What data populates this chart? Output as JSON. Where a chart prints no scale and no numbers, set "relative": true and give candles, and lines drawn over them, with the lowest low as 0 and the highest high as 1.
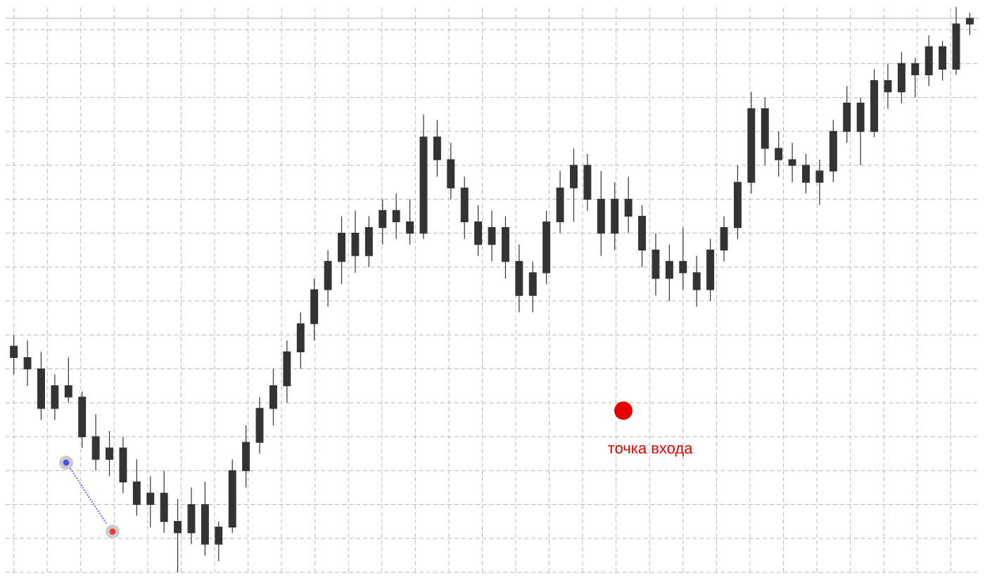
{
  "chart_data": {
    "type": "candlestick",
    "relative": true,
    "grid": true,
    "categories": [
      null,
      null,
      null,
      null,
      null,
      null,
      null,
      null,
      null,
      null,
      null,
      null,
      null,
      null,
      null,
      null,
      null,
      null,
      null,
      null,
      null,
      null,
      null,
      null,
      null,
      null,
      null,
      null,
      null,
      null,
      null,
      null,
      null,
      null,
      null,
      null,
      null,
      null,
      null,
      null,
      null,
      null,
      null,
      null,
      null,
      null,
      null,
      null,
      null,
      null,
      null,
      null,
      null,
      null,
      null,
      null,
      null,
      null,
      null,
      null,
      null,
      null,
      null,
      null,
      null,
      null,
      null,
      null,
      null,
      null,
      null
    ],
    "ohlc": [
      [
        0.4,
        0.42,
        0.35,
        0.38
      ],
      [
        0.38,
        0.41,
        0.33,
        0.36
      ],
      [
        0.36,
        0.39,
        0.27,
        0.29
      ],
      [
        0.29,
        0.35,
        0.27,
        0.33
      ],
      [
        0.33,
        0.38,
        0.3,
        0.31
      ],
      [
        0.31,
        0.32,
        0.22,
        0.24
      ],
      [
        0.24,
        0.28,
        0.18,
        0.2
      ],
      [
        0.2,
        0.25,
        0.17,
        0.22
      ],
      [
        0.22,
        0.24,
        0.14,
        0.16
      ],
      [
        0.16,
        0.2,
        0.1,
        0.12
      ],
      [
        0.12,
        0.17,
        0.08,
        0.14
      ],
      [
        0.14,
        0.18,
        0.07,
        0.09
      ],
      [
        0.09,
        0.13,
        0.0,
        0.07
      ],
      [
        0.07,
        0.15,
        0.05,
        0.12
      ],
      [
        0.12,
        0.16,
        0.03,
        0.05
      ],
      [
        0.05,
        0.09,
        0.02,
        0.08
      ],
      [
        0.08,
        0.2,
        0.07,
        0.18
      ],
      [
        0.18,
        0.26,
        0.15,
        0.23
      ],
      [
        0.23,
        0.31,
        0.21,
        0.29
      ],
      [
        0.29,
        0.36,
        0.26,
        0.33
      ],
      [
        0.33,
        0.41,
        0.3,
        0.39
      ],
      [
        0.39,
        0.46,
        0.36,
        0.44
      ],
      [
        0.44,
        0.52,
        0.41,
        0.5
      ],
      [
        0.5,
        0.57,
        0.47,
        0.55
      ],
      [
        0.55,
        0.63,
        0.51,
        0.6
      ],
      [
        0.6,
        0.64,
        0.53,
        0.56
      ],
      [
        0.56,
        0.63,
        0.54,
        0.61
      ],
      [
        0.61,
        0.66,
        0.58,
        0.64
      ],
      [
        0.64,
        0.67,
        0.59,
        0.62
      ],
      [
        0.62,
        0.66,
        0.58,
        0.6
      ],
      [
        0.6,
        0.81,
        0.59,
        0.77
      ],
      [
        0.77,
        0.8,
        0.7,
        0.73
      ],
      [
        0.73,
        0.76,
        0.66,
        0.68
      ],
      [
        0.68,
        0.7,
        0.59,
        0.62
      ],
      [
        0.62,
        0.65,
        0.56,
        0.58
      ],
      [
        0.58,
        0.64,
        0.55,
        0.61
      ],
      [
        0.61,
        0.63,
        0.52,
        0.55
      ],
      [
        0.55,
        0.58,
        0.46,
        0.49
      ],
      [
        0.49,
        0.55,
        0.46,
        0.53
      ],
      [
        0.53,
        0.64,
        0.51,
        0.62
      ],
      [
        0.62,
        0.71,
        0.6,
        0.68
      ],
      [
        0.68,
        0.75,
        0.62,
        0.72
      ],
      [
        0.72,
        0.74,
        0.64,
        0.66
      ],
      [
        0.66,
        0.71,
        0.56,
        0.6
      ],
      [
        0.6,
        0.69,
        0.57,
        0.66
      ],
      [
        0.66,
        0.7,
        0.6,
        0.63
      ],
      [
        0.63,
        0.65,
        0.54,
        0.57
      ],
      [
        0.57,
        0.6,
        0.49,
        0.52
      ],
      [
        0.52,
        0.58,
        0.48,
        0.55
      ],
      [
        0.55,
        0.61,
        0.5,
        0.53
      ],
      [
        0.53,
        0.56,
        0.47,
        0.5
      ],
      [
        0.5,
        0.59,
        0.48,
        0.57
      ],
      [
        0.57,
        0.63,
        0.55,
        0.61
      ],
      [
        0.61,
        0.72,
        0.59,
        0.69
      ],
      [
        0.69,
        0.85,
        0.67,
        0.82
      ],
      [
        0.82,
        0.84,
        0.72,
        0.75
      ],
      [
        0.75,
        0.78,
        0.7,
        0.73
      ],
      [
        0.73,
        0.76,
        0.69,
        0.72
      ],
      [
        0.72,
        0.74,
        0.67,
        0.69
      ],
      [
        0.69,
        0.73,
        0.65,
        0.71
      ],
      [
        0.71,
        0.8,
        0.69,
        0.78
      ],
      [
        0.78,
        0.86,
        0.76,
        0.83
      ],
      [
        0.83,
        0.84,
        0.72,
        0.78
      ],
      [
        0.78,
        0.89,
        0.77,
        0.87
      ],
      [
        0.87,
        0.9,
        0.82,
        0.85
      ],
      [
        0.85,
        0.92,
        0.83,
        0.9
      ],
      [
        0.9,
        0.91,
        0.84,
        0.88
      ],
      [
        0.88,
        0.95,
        0.86,
        0.93
      ],
      [
        0.93,
        0.94,
        0.87,
        0.89
      ],
      [
        0.89,
        1.0,
        0.88,
        0.97
      ],
      [
        0.97,
        0.99,
        0.95,
        0.98
      ]
    ],
    "color": "#333333",
    "ref_lines": [
      {
        "axis": "y",
        "value": 0.98,
        "color": "#c8c8c8"
      }
    ],
    "annotations": [
      "точка входа"
    ]
  }
}
